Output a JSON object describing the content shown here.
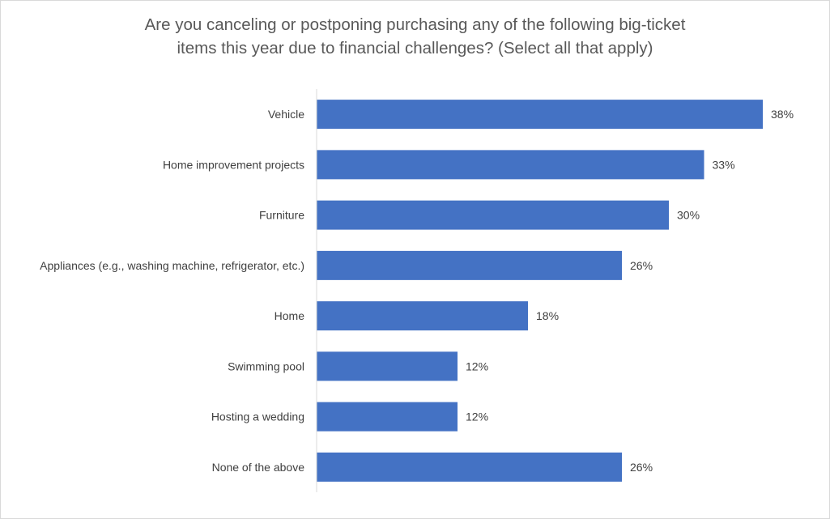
{
  "chart_data": {
    "type": "bar",
    "orientation": "horizontal",
    "title_line1": "Are you canceling or postponing purchasing any of the following big-ticket",
    "title_line2": "items this year due to financial challenges? (Select all that apply)",
    "categories": [
      "Vehicle",
      "Home improvement projects",
      "Furniture",
      "Appliances (e.g., washing machine, refrigerator, etc.)",
      "Home",
      "Swimming pool",
      "Hosting a wedding",
      "None of the above"
    ],
    "values": [
      38,
      33,
      30,
      26,
      18,
      12,
      12,
      26
    ],
    "value_labels": [
      "38%",
      "33%",
      "30%",
      "26%",
      "18%",
      "12%",
      "12%",
      "26%"
    ],
    "unit": "%",
    "xlim": [
      0,
      40
    ],
    "grid": false,
    "legend": "none",
    "bar_color": "#4472C4",
    "axis_color": "#d9d9d9"
  }
}
